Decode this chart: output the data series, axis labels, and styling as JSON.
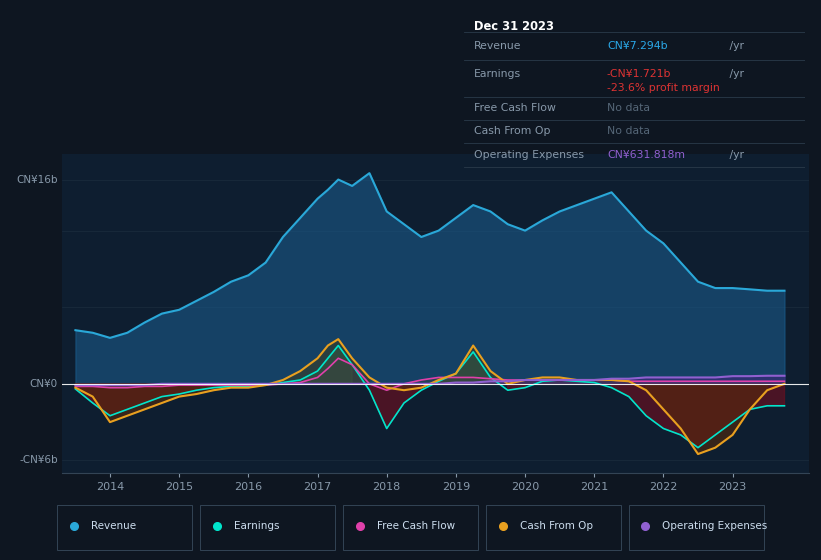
{
  "bg_color": "#0e1621",
  "plot_bg_color": "#0e1e30",
  "years": [
    2013.5,
    2013.75,
    2014.0,
    2014.25,
    2014.5,
    2014.75,
    2015.0,
    2015.25,
    2015.5,
    2015.75,
    2016.0,
    2016.25,
    2016.5,
    2016.75,
    2017.0,
    2017.15,
    2017.3,
    2017.5,
    2017.75,
    2018.0,
    2018.25,
    2018.5,
    2018.75,
    2019.0,
    2019.25,
    2019.5,
    2019.75,
    2020.0,
    2020.25,
    2020.5,
    2020.75,
    2021.0,
    2021.25,
    2021.5,
    2021.75,
    2022.0,
    2022.25,
    2022.5,
    2022.75,
    2023.0,
    2023.25,
    2023.5,
    2023.75
  ],
  "revenue": [
    4.2,
    4.0,
    3.6,
    4.0,
    4.8,
    5.5,
    5.8,
    6.5,
    7.2,
    8.0,
    8.5,
    9.5,
    11.5,
    13.0,
    14.5,
    15.2,
    16.0,
    15.5,
    16.5,
    13.5,
    12.5,
    11.5,
    12.0,
    13.0,
    14.0,
    13.5,
    12.5,
    12.0,
    12.8,
    13.5,
    14.0,
    14.5,
    15.0,
    13.5,
    12.0,
    11.0,
    9.5,
    8.0,
    7.5,
    7.5,
    7.4,
    7.294,
    7.294
  ],
  "earnings": [
    -0.4,
    -1.5,
    -2.5,
    -2.0,
    -1.5,
    -1.0,
    -0.8,
    -0.5,
    -0.3,
    -0.2,
    -0.2,
    -0.1,
    0.1,
    0.3,
    1.0,
    2.0,
    3.0,
    1.5,
    -0.5,
    -3.5,
    -1.5,
    -0.5,
    0.2,
    0.8,
    2.5,
    0.5,
    -0.5,
    -0.3,
    0.2,
    0.3,
    0.2,
    0.1,
    -0.3,
    -1.0,
    -2.5,
    -3.5,
    -4.0,
    -5.0,
    -4.0,
    -3.0,
    -2.0,
    -1.721,
    -1.721
  ],
  "free_cash_flow": [
    -0.2,
    -0.2,
    -0.3,
    -0.3,
    -0.2,
    -0.2,
    -0.1,
    -0.1,
    -0.1,
    -0.1,
    -0.1,
    -0.1,
    0.0,
    0.1,
    0.5,
    1.2,
    2.0,
    1.5,
    0.0,
    -0.5,
    0.0,
    0.3,
    0.5,
    0.5,
    0.5,
    0.4,
    0.3,
    0.3,
    0.3,
    0.3,
    0.3,
    0.3,
    0.3,
    0.2,
    0.2,
    0.2,
    0.2,
    0.2,
    0.2,
    0.2,
    0.2,
    0.2,
    0.2
  ],
  "cash_from_op": [
    -0.3,
    -1.0,
    -3.0,
    -2.5,
    -2.0,
    -1.5,
    -1.0,
    -0.8,
    -0.5,
    -0.3,
    -0.3,
    -0.1,
    0.3,
    1.0,
    2.0,
    3.0,
    3.5,
    2.0,
    0.5,
    -0.3,
    -0.5,
    -0.3,
    0.3,
    0.8,
    3.0,
    1.0,
    0.0,
    0.3,
    0.5,
    0.5,
    0.3,
    0.3,
    0.3,
    0.2,
    -0.5,
    -2.0,
    -3.5,
    -5.5,
    -5.0,
    -4.0,
    -2.0,
    -0.5,
    0.0
  ],
  "operating_expenses": [
    -0.1,
    -0.1,
    -0.1,
    -0.1,
    -0.1,
    0.0,
    0.0,
    0.0,
    0.0,
    0.0,
    0.0,
    0.0,
    0.0,
    0.0,
    0.0,
    0.0,
    0.0,
    0.0,
    0.0,
    0.0,
    0.0,
    0.0,
    0.0,
    0.1,
    0.1,
    0.2,
    0.2,
    0.3,
    0.3,
    0.3,
    0.3,
    0.3,
    0.4,
    0.4,
    0.5,
    0.5,
    0.5,
    0.5,
    0.5,
    0.6,
    0.6,
    0.6318,
    0.6318
  ],
  "revenue_color": "#2aa8d8",
  "revenue_fill_color": "#1a5a8a",
  "earnings_line_color": "#00e5cc",
  "earnings_fill_color": "#6b1020",
  "fcf_line_color": "#e040aa",
  "fcf_fill_color": "#404040",
  "cfo_line_color": "#e8a020",
  "cfo_fill_color": "#4a3a08",
  "opex_line_color": "#9060d0",
  "opex_fill_color": "#4a2080",
  "ylim": [
    -7,
    18
  ],
  "xlim": [
    2013.3,
    2024.1
  ],
  "xticks": [
    2014,
    2015,
    2016,
    2017,
    2018,
    2019,
    2020,
    2021,
    2022,
    2023
  ],
  "info_box": {
    "date": "Dec 31 2023",
    "revenue_label": "Revenue",
    "revenue_value": "CN¥7.294b",
    "revenue_unit": " /yr",
    "earnings_label": "Earnings",
    "earnings_value": "-CN¥1.721b",
    "earnings_unit": " /yr",
    "earnings_margin": "-23.6% profit margin",
    "fcf_label": "Free Cash Flow",
    "fcf_value": "No data",
    "cfo_label": "Cash From Op",
    "cfo_value": "No data",
    "opex_label": "Operating Expenses",
    "opex_value": "CN¥631.818m",
    "opex_unit": " /yr"
  },
  "legend_items": [
    {
      "label": "Revenue",
      "color": "#2aa8d8"
    },
    {
      "label": "Earnings",
      "color": "#00e5cc"
    },
    {
      "label": "Free Cash Flow",
      "color": "#e040aa"
    },
    {
      "label": "Cash From Op",
      "color": "#e8a020"
    },
    {
      "label": "Operating Expenses",
      "color": "#9060d0"
    }
  ]
}
